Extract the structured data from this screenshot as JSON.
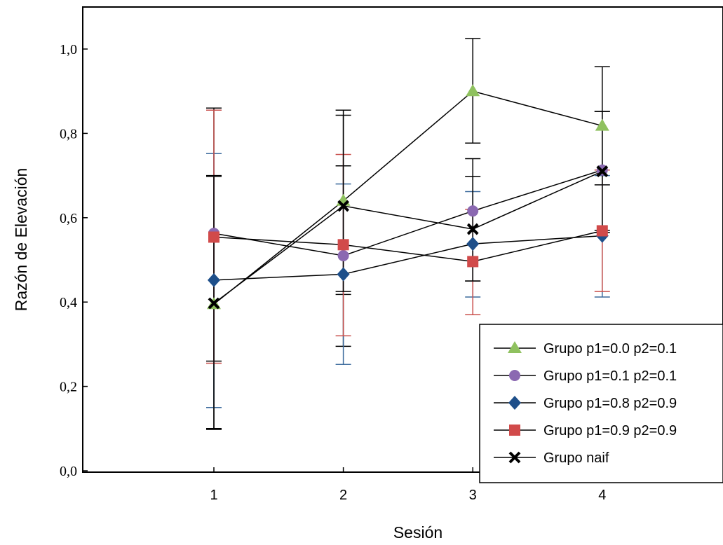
{
  "chart_data": {
    "type": "line",
    "xlabel": "Sesión",
    "ylabel": "Razón de Elevación",
    "x": [
      1,
      2,
      3,
      4
    ],
    "x_tick_labels": [
      "1",
      "2",
      "3",
      "4"
    ],
    "xlim": [
      0,
      5
    ],
    "ylim": [
      0,
      1.1
    ],
    "y_ticks": [
      0.0,
      0.2,
      0.4,
      0.6,
      0.8,
      1.0
    ],
    "y_tick_labels": [
      "0,0",
      "0,2",
      "0,4",
      "0,6",
      "0,8",
      "1,0"
    ],
    "grid": false,
    "legend_position": "bottom-right",
    "series": [
      {
        "name": "Grupo p1=0.0 p2=0.1",
        "marker": "triangle",
        "color": "#8fc15f",
        "error_color": "#000000",
        "values": [
          0.395,
          0.64,
          0.9,
          0.818
        ],
        "err_low": [
          0.1,
          0.418,
          0.777,
          0.678
        ],
        "err_high": [
          0.698,
          0.855,
          1.025,
          0.958
        ]
      },
      {
        "name": "Grupo p1=0.1 p2=0.1",
        "marker": "circle",
        "color": "#8b69b1",
        "error_color": "#000000",
        "values": [
          0.563,
          0.51,
          0.616,
          0.713
        ],
        "err_low": [
          0.26,
          0.295,
          0.45,
          0.57
        ],
        "err_high": [
          0.86,
          0.723,
          0.74,
          0.852
        ]
      },
      {
        "name": "Grupo p1=0.8 p2=0.9",
        "marker": "diamond",
        "color": "#1e4f8a",
        "error_color": "#3b6a9c",
        "values": [
          0.452,
          0.466,
          0.538,
          0.557
        ],
        "err_low": [
          0.15,
          0.252,
          0.412,
          0.412
        ],
        "err_high": [
          0.752,
          0.68,
          0.662,
          0.7
        ]
      },
      {
        "name": "Grupo p1=0.9 p2=0.9",
        "marker": "square",
        "color": "#d14a4a",
        "error_color": "#c9504d",
        "values": [
          0.554,
          0.536,
          0.496,
          0.569
        ],
        "err_low": [
          0.255,
          0.32,
          0.37,
          0.425
        ],
        "err_high": [
          0.855,
          0.75,
          0.62,
          0.713
        ]
      },
      {
        "name": "Grupo naif",
        "marker": "x",
        "color": "#000000",
        "error_color": "#000000",
        "values": [
          0.397,
          0.628,
          0.573,
          0.71
        ],
        "err_low": [
          0.098,
          0.425,
          0.45,
          0.565
        ],
        "err_high": [
          0.7,
          0.843,
          0.698,
          0.852
        ]
      }
    ]
  }
}
